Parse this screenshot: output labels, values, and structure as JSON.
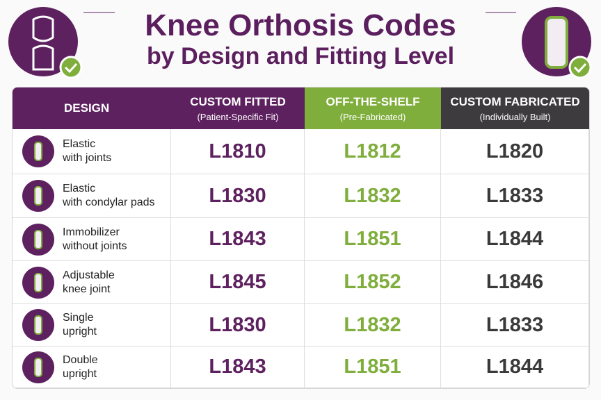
{
  "header": {
    "title": [
      "Knee Orthosis Codes",
      "by Design and Fitting Level"
    ]
  },
  "table": {
    "columns": [
      {
        "label": "DESIGN"
      },
      {
        "label": "CUSTOM FITTED",
        "sublabel": "(Patient-Specific Fit)"
      },
      {
        "label": "OFF-THE-SHELF",
        "sublabel": "(Pre-Fabricated)"
      },
      {
        "label": "CUSTOM FABRICATED",
        "sublabel": "(Individually Built)"
      }
    ],
    "rows": [
      {
        "design": [
          "Elastic",
          "with joints"
        ],
        "codes": [
          "L1810",
          "L1812",
          "L1820"
        ]
      },
      {
        "design": [
          "Elastic",
          "with condylar pads"
        ],
        "codes": [
          "L1830",
          "L1832",
          "L1833"
        ]
      },
      {
        "design": [
          "Immobilizer",
          "without joints"
        ],
        "codes": [
          "L1843",
          "L1851",
          "L1844"
        ]
      },
      {
        "design": [
          "Adjustable",
          "knee joint"
        ],
        "codes": [
          "L1845",
          "L1852",
          "L1846"
        ]
      },
      {
        "design": [
          "Single",
          "upright"
        ],
        "codes": [
          "L1830",
          "L1832",
          "L1833"
        ]
      },
      {
        "design": [
          "Double",
          "upright"
        ],
        "codes": [
          "L1843",
          "L1851",
          "L1844"
        ]
      }
    ]
  }
}
